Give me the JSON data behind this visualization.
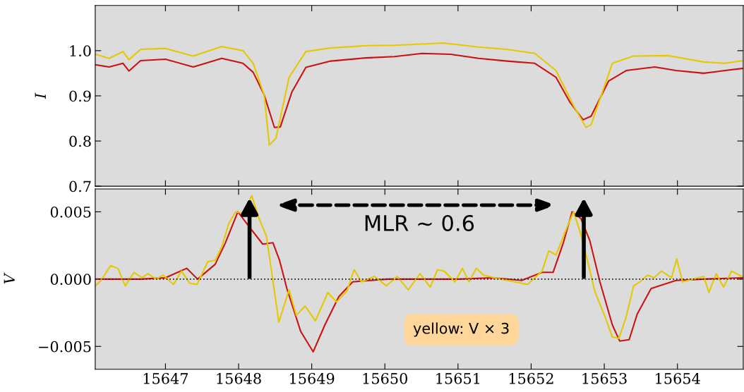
{
  "chart_data": [
    {
      "type": "line",
      "ylabel": "I",
      "xlim": [
        15646.04,
        15654.9
      ],
      "ylim": [
        0.7,
        1.1
      ],
      "yticks": [
        {
          "value": 0.7,
          "label": "0.7"
        },
        {
          "value": 0.8,
          "label": "0.8"
        },
        {
          "value": 0.9,
          "label": "0.9"
        },
        {
          "value": 1.0,
          "label": "1.0"
        }
      ],
      "xticks": [
        15647,
        15648,
        15649,
        15650,
        15651,
        15652,
        15653,
        15654
      ],
      "tick_labels": "y",
      "grid": false,
      "legend": false,
      "series": [
        {
          "color": "#cc1111",
          "x": [
            15646.04,
            15646.23,
            15646.42,
            15646.5,
            15646.66,
            15647.0,
            15647.38,
            15647.77,
            15648.06,
            15648.2,
            15648.35,
            15648.49,
            15648.57,
            15648.73,
            15648.92,
            15649.26,
            15649.74,
            15650.13,
            15650.51,
            15650.9,
            15651.28,
            15651.67,
            15652.05,
            15652.34,
            15652.53,
            15652.71,
            15652.82,
            15653.06,
            15653.3,
            15653.69,
            15653.98,
            15654.36,
            15654.65,
            15654.9
          ],
          "values": [
            0.969,
            0.964,
            0.972,
            0.955,
            0.978,
            0.981,
            0.964,
            0.983,
            0.972,
            0.952,
            0.902,
            0.83,
            0.831,
            0.909,
            0.963,
            0.977,
            0.984,
            0.987,
            0.994,
            0.992,
            0.983,
            0.977,
            0.972,
            0.941,
            0.886,
            0.847,
            0.855,
            0.933,
            0.956,
            0.964,
            0.956,
            0.95,
            0.956,
            0.961
          ]
        },
        {
          "color": "#e6c800",
          "x": [
            15646.04,
            15646.23,
            15646.42,
            15646.5,
            15646.66,
            15647.0,
            15647.38,
            15647.77,
            15648.06,
            15648.2,
            15648.35,
            15648.42,
            15648.51,
            15648.69,
            15648.92,
            15649.26,
            15649.74,
            15650.13,
            15650.8,
            15651.28,
            15651.67,
            15652.05,
            15652.34,
            15652.58,
            15652.75,
            15652.82,
            15653.11,
            15653.4,
            15653.88,
            15654.36,
            15654.65,
            15654.9
          ],
          "values": [
            0.992,
            0.983,
            0.998,
            0.98,
            1.003,
            1.005,
            0.988,
            1.009,
            1.0,
            0.972,
            0.902,
            0.791,
            0.806,
            0.941,
            0.998,
            1.006,
            1.011,
            1.012,
            1.017,
            1.008,
            1.003,
            0.994,
            0.956,
            0.878,
            0.83,
            0.836,
            0.972,
            0.988,
            0.989,
            0.975,
            0.972,
            0.978
          ]
        }
      ]
    },
    {
      "type": "line",
      "ylabel": "V",
      "xlim": [
        15646.04,
        15654.9
      ],
      "ylim": [
        -0.0067,
        0.0067
      ],
      "yticks": [
        {
          "value": -0.005,
          "label": "−0.005"
        },
        {
          "value": 0,
          "label": "0.000"
        },
        {
          "value": 0.005,
          "label": "0.005"
        }
      ],
      "xticks": [
        15647,
        15648,
        15649,
        15650,
        15651,
        15652,
        15653,
        15654
      ],
      "grid": false,
      "legend": false,
      "ref_lines": [
        {
          "axis": "y",
          "value": 0,
          "color": "#222222",
          "line_style": "dotted"
        }
      ],
      "annotations": [
        "MLR ~ 0.6",
        "yellow: V × 3"
      ],
      "series": [
        {
          "color": "#cc1111",
          "x": [
            15646.04,
            15646.66,
            15647.0,
            15647.29,
            15647.44,
            15647.68,
            15647.82,
            15647.99,
            15648.13,
            15648.33,
            15648.47,
            15648.56,
            15648.66,
            15648.85,
            15649.02,
            15649.18,
            15649.37,
            15649.56,
            15650.04,
            15650.52,
            15651.0,
            15651.48,
            15651.87,
            15652.15,
            15652.3,
            15652.44,
            15652.56,
            15652.68,
            15652.8,
            15652.94,
            15653.11,
            15653.21,
            15653.34,
            15653.45,
            15653.64,
            15653.98,
            15654.36,
            15654.9
          ],
          "values": [
            0,
            0,
            0.0001,
            0.0008,
            0,
            0.0011,
            0.0027,
            0.005,
            0.004,
            0.0026,
            0.0027,
            0.0014,
            -0.0007,
            -0.0039,
            -0.0054,
            -0.0034,
            -0.0013,
            -0.0002,
            0,
            0,
            0,
            0.0001,
            -0.0001,
            0.0005,
            0.0005,
            0.0027,
            0.005,
            0.0045,
            0.0029,
            -0.0002,
            -0.0034,
            -0.0046,
            -0.0045,
            -0.0026,
            -0.0007,
            -0.0001,
            0,
            0.0001
          ]
        },
        {
          "color": "#e6c800",
          "x": [
            15646.04,
            15646.12,
            15646.25,
            15646.35,
            15646.45,
            15646.57,
            15646.68,
            15646.76,
            15646.87,
            15646.97,
            15647.11,
            15647.22,
            15647.33,
            15647.43,
            15647.58,
            15647.68,
            15647.77,
            15647.87,
            15647.96,
            15648.06,
            15648.18,
            15648.28,
            15648.38,
            15648.45,
            15648.55,
            15648.69,
            15648.79,
            15648.91,
            15649.05,
            15649.22,
            15649.34,
            15649.48,
            15649.58,
            15649.68,
            15649.86,
            15650.02,
            15650.17,
            15650.32,
            15650.48,
            15650.62,
            15650.72,
            15650.81,
            15650.96,
            15651.06,
            15651.15,
            15651.25,
            15651.35,
            15651.5,
            15651.95,
            15652.15,
            15652.24,
            15652.34,
            15652.48,
            15652.58,
            15652.67,
            15652.77,
            15652.87,
            15653.01,
            15653.11,
            15653.2,
            15653.3,
            15653.4,
            15653.49,
            15653.59,
            15653.68,
            15653.78,
            15653.92,
            15653.99,
            15654.07,
            15654.36,
            15654.43,
            15654.53,
            15654.63,
            15654.74,
            15654.88
          ],
          "values": [
            -0.0005,
            -0.0001,
            0.001,
            0.0008,
            -0.0005,
            0.0005,
            0.0001,
            0.0004,
            0,
            0.0003,
            -0.0004,
            0.0006,
            -0.0003,
            -0.0004,
            0.0013,
            0.0014,
            0.0024,
            0.0042,
            0.005,
            0.0049,
            0.0062,
            0.0045,
            0.0032,
            0.0006,
            -0.0032,
            -0.0008,
            -0.0027,
            -0.002,
            -0.0031,
            -0.001,
            -0.0017,
            -0.0009,
            0.0007,
            -0.0002,
            0.0002,
            -0.0005,
            0.0002,
            -0.0008,
            0.0004,
            -0.0006,
            0.0007,
            0.0006,
            -0.0002,
            0.0008,
            -0.0002,
            0.0008,
            0.0003,
            0.0001,
            -0.0004,
            0.0006,
            0.0021,
            0.0018,
            0.0037,
            0.005,
            0.0035,
            0.0014,
            -0.0009,
            -0.0028,
            -0.0043,
            -0.0044,
            -0.0028,
            -0.0005,
            -0.0002,
            0.0003,
            0.0001,
            0.0006,
            0.0001,
            0.0015,
            -0.0002,
            0.0002,
            -0.001,
            0.0004,
            -0.0006,
            0.0006,
            0.0002
          ]
        }
      ]
    }
  ]
}
